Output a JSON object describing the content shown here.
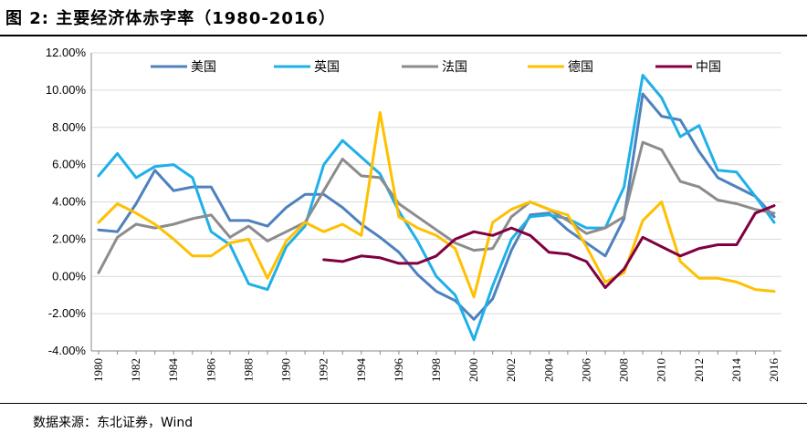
{
  "page": {
    "title": "图 2: 主要经济体赤字率（1980-2016）",
    "source": "数据来源：东北证券，Wind"
  },
  "chart_data": {
    "type": "line",
    "title": "",
    "xlabel": "",
    "ylabel": "",
    "ylim": [
      -4,
      12
    ],
    "y_ticks": [
      -4,
      -2,
      0,
      2,
      4,
      6,
      8,
      10,
      12
    ],
    "y_tick_labels": [
      "-4.00%",
      "-2.00%",
      "0.00%",
      "2.00%",
      "4.00%",
      "6.00%",
      "8.00%",
      "10.00%",
      "12.00%"
    ],
    "x_tick_labels": [
      "1980",
      "1982",
      "1984",
      "1986",
      "1988",
      "1990",
      "1992",
      "1994",
      "1996",
      "1998",
      "2000",
      "2002",
      "2004",
      "2006",
      "2008",
      "2010",
      "2012",
      "2014",
      "2016"
    ],
    "grid": "horizontal",
    "legend_position": "top",
    "x": [
      1980,
      1981,
      1982,
      1983,
      1984,
      1985,
      1986,
      1987,
      1988,
      1989,
      1990,
      1991,
      1992,
      1993,
      1994,
      1995,
      1996,
      1997,
      1998,
      1999,
      2000,
      2001,
      2002,
      2003,
      2004,
      2005,
      2006,
      2007,
      2008,
      2009,
      2010,
      2011,
      2012,
      2013,
      2014,
      2015,
      2016
    ],
    "series": [
      {
        "name": "美国",
        "color": "#4F81BD",
        "values": [
          2.5,
          2.4,
          3.9,
          5.7,
          4.6,
          4.8,
          4.8,
          3.0,
          3.0,
          2.7,
          3.7,
          4.4,
          4.4,
          3.7,
          2.8,
          2.1,
          1.3,
          0.1,
          -0.8,
          -1.3,
          -2.3,
          -1.2,
          1.4,
          3.3,
          3.4,
          2.5,
          1.8,
          1.1,
          3.1,
          9.8,
          8.6,
          8.4,
          6.7,
          5.3,
          4.8,
          4.3,
          3.2
        ]
      },
      {
        "name": "英国",
        "color": "#1FB0E8",
        "values": [
          5.4,
          6.6,
          5.3,
          5.9,
          6.0,
          5.3,
          2.4,
          1.7,
          -0.4,
          -0.7,
          1.6,
          2.7,
          6.0,
          7.3,
          6.4,
          5.5,
          3.5,
          1.9,
          0.0,
          -1.0,
          -3.4,
          -0.5,
          2.0,
          3.2,
          3.3,
          3.1,
          2.6,
          2.6,
          4.8,
          10.8,
          9.6,
          7.5,
          8.1,
          5.7,
          5.6,
          4.3,
          2.9
        ]
      },
      {
        "name": "法国",
        "color": "#8C8C8C",
        "values": [
          0.2,
          2.1,
          2.8,
          2.6,
          2.8,
          3.1,
          3.3,
          2.1,
          2.7,
          1.9,
          2.4,
          2.9,
          4.6,
          6.3,
          5.4,
          5.3,
          3.9,
          3.2,
          2.5,
          1.8,
          1.4,
          1.5,
          3.2,
          4.0,
          3.6,
          3.0,
          2.3,
          2.6,
          3.2,
          7.2,
          6.8,
          5.1,
          4.8,
          4.1,
          3.9,
          3.6,
          3.4
        ]
      },
      {
        "name": "德国",
        "color": "#FFC000",
        "values": [
          2.9,
          3.9,
          3.4,
          2.8,
          2.0,
          1.1,
          1.1,
          1.8,
          2.0,
          -0.1,
          1.9,
          2.9,
          2.4,
          2.8,
          2.2,
          8.8,
          3.2,
          2.6,
          2.2,
          1.5,
          -1.1,
          2.9,
          3.6,
          4.0,
          3.6,
          3.3,
          1.6,
          -0.3,
          0.2,
          3.0,
          4.0,
          0.8,
          -0.1,
          -0.1,
          -0.3,
          -0.7,
          -0.8
        ]
      },
      {
        "name": "中国",
        "color": "#800040",
        "values": [
          null,
          null,
          null,
          null,
          null,
          null,
          null,
          null,
          null,
          null,
          null,
          null,
          0.9,
          0.8,
          1.1,
          1.0,
          0.7,
          0.7,
          1.1,
          2.0,
          2.4,
          2.2,
          2.6,
          2.2,
          1.3,
          1.2,
          0.8,
          -0.6,
          0.4,
          2.1,
          1.6,
          1.1,
          1.5,
          1.7,
          1.7,
          3.4,
          3.8
        ]
      }
    ]
  }
}
